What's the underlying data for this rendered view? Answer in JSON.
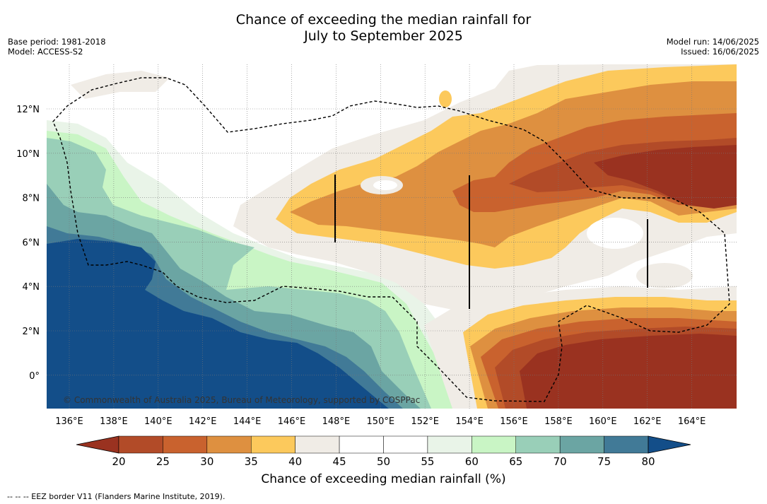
{
  "title": {
    "line1": "Chance of exceeding the median rainfall for",
    "line2": "July to September 2025"
  },
  "meta": {
    "base_period": "Base period: 1981-2018",
    "model": "Model: ACCESS-S2",
    "model_run": "Model run: 14/06/2025",
    "issued": "Issued: 16/06/2025"
  },
  "map": {
    "lon_labels": [
      "136°E",
      "138°E",
      "140°E",
      "142°E",
      "144°E",
      "146°E",
      "148°E",
      "150°E",
      "152°E",
      "154°E",
      "156°E",
      "158°E",
      "160°E",
      "162°E",
      "164°E"
    ],
    "lat_labels": [
      "12°N",
      "10°N",
      "8°N",
      "6°N",
      "4°N",
      "2°N",
      "0°"
    ],
    "copyright": "© Commonwealth of Australia 2025, Bureau of Meteorology, supported by COSPPac"
  },
  "colorbar": {
    "title": "Chance of exceeding median rainfall (%)",
    "tick_labels": [
      "20",
      "25",
      "30",
      "35",
      "40",
      "45",
      "50",
      "55",
      "60",
      "65",
      "70",
      "75",
      "80"
    ],
    "colors": [
      "#9a3220",
      "#b24b28",
      "#c9622e",
      "#de9040",
      "#fcc95c",
      "#f0ece6",
      "#ffffff",
      "#ffffff",
      "#e9f4e8",
      "#c9f5c5",
      "#99cfb8",
      "#6ba5a3",
      "#417a97",
      "#134e89"
    ]
  },
  "legend_note": "-- -- -- EEZ border V11 (Flanders Marine Institute, 2019)."
}
